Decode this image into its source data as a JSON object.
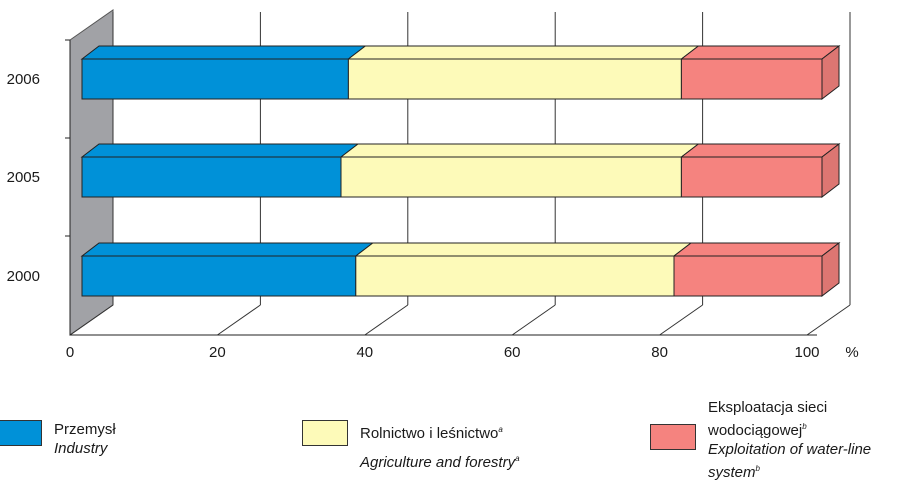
{
  "chart_data": {
    "type": "bar",
    "orientation": "horizontal",
    "stacked": true,
    "three_d": true,
    "categories": [
      "2006",
      "2005",
      "2000"
    ],
    "series": [
      {
        "name": "Przemysł / Industry",
        "color": "#0091d8",
        "values": [
          36,
          35,
          37
        ]
      },
      {
        "name": "Rolnictwo i leśnictwo / Agriculture and forestry",
        "color": "#fdfab9",
        "values": [
          45,
          46,
          43
        ]
      },
      {
        "name": "Eksploatacja sieci wodociągowej / Exploitation of water-line system",
        "color": "#f5837f",
        "values": [
          19,
          19,
          20
        ]
      }
    ],
    "x_ticks": [
      "0",
      "20",
      "40",
      "60",
      "80",
      "100"
    ],
    "x_unit": "%",
    "xlim": [
      0,
      100
    ],
    "grid": true
  },
  "legend": [
    {
      "pl": "Przemysł",
      "en": "Industry",
      "pl_sup": "",
      "en_sup": "",
      "color": "#0091d8"
    },
    {
      "pl": "Rolnictwo i leśnictwo",
      "pl_sup": "a",
      "en": "Agriculture and forestry",
      "en_sup": "a",
      "color": "#fdfab9"
    },
    {
      "pl1": "Eksploatacja sieci",
      "pl2": "wodociągowej",
      "pl_sup": "b",
      "en1": "Exploitation of water-line",
      "en2": "system",
      "en_sup": "b",
      "color": "#f5837f"
    }
  ]
}
